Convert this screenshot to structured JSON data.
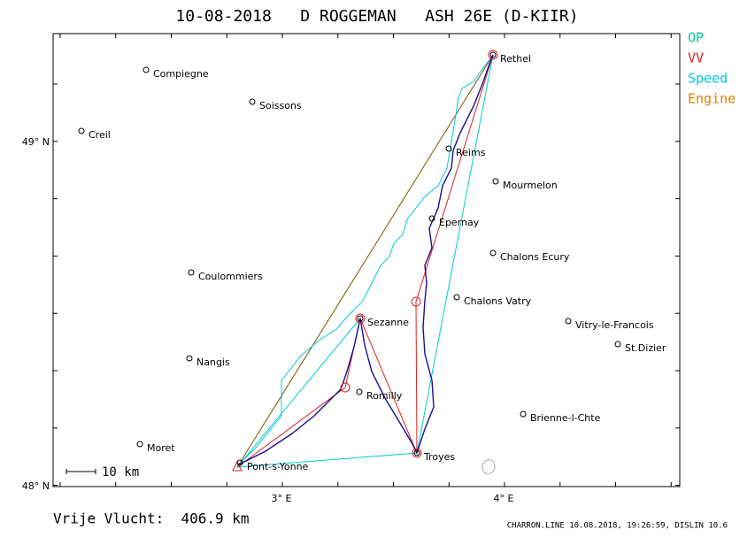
{
  "header": {
    "title": "10-08-2018   D ROGGEMAN   ASH 26E (D-KIIR)"
  },
  "legend": [
    {
      "label": "OP",
      "color": "#00cc99"
    },
    {
      "label": "VV",
      "color": "#e02020"
    },
    {
      "label": "Speed",
      "color": "#00c8e0"
    },
    {
      "label": "Engine",
      "color": "#e08000"
    }
  ],
  "axes": {
    "x_labels": [
      "3° E",
      "4° E"
    ],
    "y_labels": [
      "49° N",
      "48° N"
    ]
  },
  "scale": "10 km",
  "towns": [
    "Compiegne",
    "Soissons",
    "Creil",
    "Reims",
    "Rethel",
    "Mourmelon",
    "Epernay",
    "Chalons Ecury",
    "Chalons Vatry",
    "Coulommiers",
    "Sezanne",
    "Vitry-le-Francois",
    "St.Dizier",
    "Nangis",
    "Romilly",
    "Brienne-l-Chte",
    "Troyes",
    "Moret",
    "Pont-s-Yonne"
  ],
  "footer": {
    "distance": "Vrije Vlucht:  406.9 km",
    "credits": "CHARRON.LINE 10.08.2018, 19:26:59, DISLIN 10.6"
  }
}
